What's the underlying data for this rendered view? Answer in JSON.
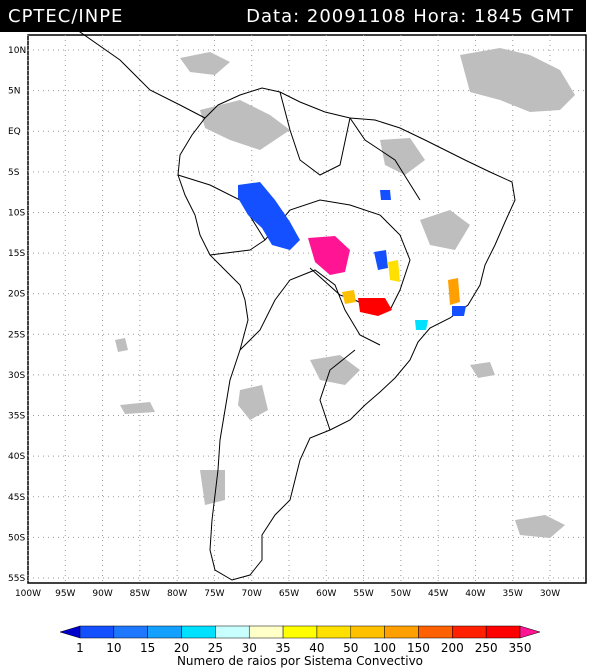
{
  "header": {
    "left": "CPTEC/INPE",
    "right": "Data: 20091108 Hora: 1845 GMT"
  },
  "axes": {
    "lat_ticks": [
      "10N",
      "5N",
      "EQ",
      "5S",
      "10S",
      "15S",
      "20S",
      "25S",
      "30S",
      "35S",
      "40S",
      "45S",
      "50S",
      "55S"
    ],
    "lon_ticks": [
      "100W",
      "95W",
      "90W",
      "85W",
      "80W",
      "75W",
      "70W",
      "65W",
      "60W",
      "55W",
      "50W",
      "45W",
      "40W",
      "35W",
      "30W"
    ],
    "grid": "dotted"
  },
  "legend": {
    "title": "Numero de raios por Sistema Convectivo",
    "labels": [
      "1",
      "10",
      "15",
      "20",
      "25",
      "30",
      "35",
      "40",
      "50",
      "100",
      "150",
      "200",
      "250",
      "350"
    ],
    "colors": [
      "#0000cc",
      "#1450ff",
      "#1e78ff",
      "#14a0ff",
      "#00e0ff",
      "#c8ffff",
      "#ffffc8",
      "#ffff00",
      "#ffe000",
      "#ffc000",
      "#ffa000",
      "#ff6000",
      "#ff2000",
      "#ff0000",
      "#ff1493"
    ]
  },
  "colors": {
    "cloud": "#bebebe",
    "border": "#000000"
  }
}
